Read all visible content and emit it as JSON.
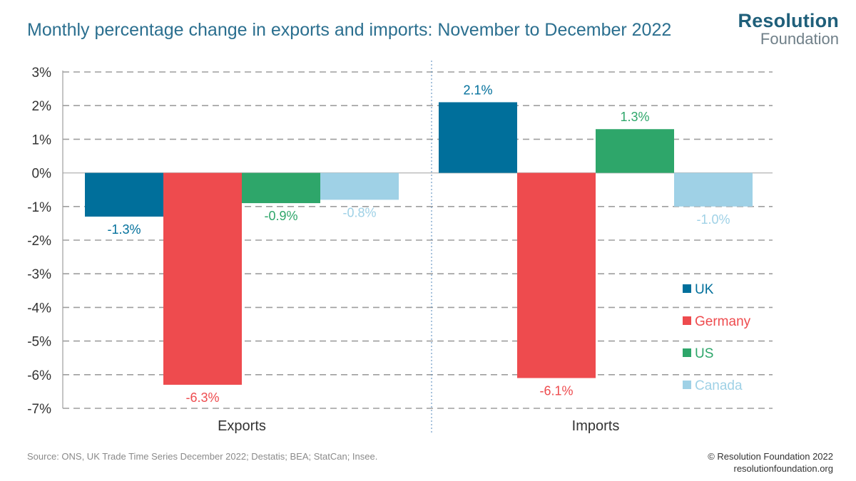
{
  "title": "Monthly percentage change in exports and imports: November to December 2022",
  "logo": {
    "line1": "Resolution",
    "line2": "Foundation"
  },
  "footer": {
    "source": "Source: ONS, UK Trade Time Series December 2022; Destatis; BEA; StatCan; Insee.",
    "copyright": "© Resolution Foundation 2022",
    "url": "resolutionfoundation.org"
  },
  "chart_data": {
    "type": "bar",
    "title": "Monthly percentage change in exports and imports: November to December 2022",
    "categories": [
      "Exports",
      "Imports"
    ],
    "series": [
      {
        "name": "UK",
        "color": "#006f9b",
        "values": [
          -1.3,
          2.1
        ],
        "labels": [
          "-1.3%",
          "2.1%"
        ]
      },
      {
        "name": "Germany",
        "color": "#ee4b4e",
        "values": [
          -6.3,
          -6.1
        ],
        "labels": [
          "-6.3%",
          "-6.1%"
        ]
      },
      {
        "name": "US",
        "color": "#2ea66a",
        "values": [
          -0.9,
          1.3
        ],
        "labels": [
          "-0.9%",
          "1.3%"
        ]
      },
      {
        "name": "Canada",
        "color": "#9fd1e6",
        "values": [
          -0.8,
          -1.0
        ],
        "labels": [
          "-0.8%",
          "-1.0%"
        ]
      }
    ],
    "ylim": [
      -7,
      3
    ],
    "yticks": [
      3,
      2,
      1,
      0,
      -1,
      -2,
      -3,
      -4,
      -5,
      -6,
      -7
    ],
    "ytick_labels": [
      "3%",
      "2%",
      "1%",
      "0%",
      "-1%",
      "-2%",
      "-3%",
      "-4%",
      "-5%",
      "-6%",
      "-7%"
    ],
    "xlabel": "",
    "ylabel": "",
    "grid": true,
    "legend_position": "bottom-right"
  }
}
